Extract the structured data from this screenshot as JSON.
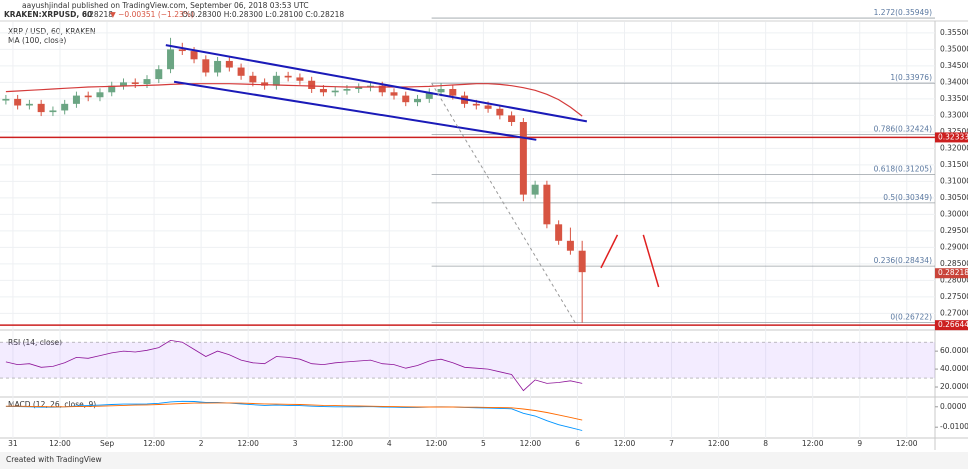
{
  "chart_data": {
    "type": "candlestick",
    "title": "aayushjindal published on TradingView.com, September 06, 2018 03:53 UTC",
    "subtitle": "KRAKEN:XRPUSD, 60",
    "quote": {
      "last": "0.28218",
      "change": "▼ −0.00351 (−1.23%)",
      "ohlc": "O:0.28300 H:0.28300 L:0.28100 C:0.28218"
    },
    "symbol": "XRP / USD, 60, KRAKEN",
    "up_color": "#6ba583",
    "down_color": "#d75442",
    "open": [
      0.3345,
      0.335,
      0.333,
      0.3335,
      0.331,
      0.3315,
      0.3335,
      0.336,
      0.3355,
      0.337,
      0.339,
      0.34,
      0.3395,
      0.341,
      0.344,
      0.35,
      0.3495,
      0.347,
      0.343,
      0.3465,
      0.3445,
      0.342,
      0.34,
      0.339,
      0.342,
      0.3415,
      0.3405,
      0.338,
      0.337,
      0.3375,
      0.338,
      0.3385,
      0.339,
      0.337,
      0.336,
      0.334,
      0.335,
      0.337,
      0.338,
      0.336,
      0.3335,
      0.333,
      0.332,
      0.33,
      0.328,
      0.306,
      0.309,
      0.297,
      0.292,
      0.289
    ],
    "high": [
      0.3362,
      0.3362,
      0.3347,
      0.3347,
      0.3327,
      0.3347,
      0.3372,
      0.3372,
      0.3382,
      0.3402,
      0.3412,
      0.3412,
      0.3422,
      0.3452,
      0.3535,
      0.352,
      0.3507,
      0.3482,
      0.3477,
      0.3477,
      0.3457,
      0.3432,
      0.3412,
      0.3432,
      0.3432,
      0.3427,
      0.3417,
      0.3392,
      0.3387,
      0.3392,
      0.3397,
      0.3402,
      0.3402,
      0.3382,
      0.3372,
      0.3362,
      0.3382,
      0.3398,
      0.3392,
      0.3372,
      0.3347,
      0.3342,
      0.3332,
      0.3312,
      0.3292,
      0.3102,
      0.3102,
      0.2982,
      0.296,
      0.292
    ],
    "low": [
      0.3333,
      0.3318,
      0.3318,
      0.3298,
      0.3298,
      0.3303,
      0.3323,
      0.3343,
      0.3343,
      0.3358,
      0.3378,
      0.3383,
      0.3383,
      0.3398,
      0.3428,
      0.3483,
      0.3458,
      0.3418,
      0.3418,
      0.3433,
      0.3408,
      0.3388,
      0.3378,
      0.3378,
      0.3403,
      0.3393,
      0.3368,
      0.3358,
      0.3358,
      0.3363,
      0.3368,
      0.3373,
      0.3358,
      0.3348,
      0.3328,
      0.3328,
      0.3338,
      0.3358,
      0.3348,
      0.3323,
      0.3318,
      0.3308,
      0.3288,
      0.3268,
      0.304,
      0.3048,
      0.2958,
      0.2908,
      0.2878,
      0.26722
    ],
    "close": [
      0.335,
      0.333,
      0.3335,
      0.331,
      0.3315,
      0.3335,
      0.336,
      0.3355,
      0.337,
      0.339,
      0.34,
      0.3395,
      0.341,
      0.344,
      0.35,
      0.3495,
      0.347,
      0.343,
      0.3465,
      0.3445,
      0.342,
      0.34,
      0.339,
      0.342,
      0.3415,
      0.3405,
      0.338,
      0.337,
      0.3375,
      0.338,
      0.3385,
      0.339,
      0.337,
      0.336,
      0.334,
      0.335,
      0.337,
      0.338,
      0.336,
      0.3335,
      0.333,
      0.332,
      0.33,
      0.328,
      0.306,
      0.309,
      0.297,
      0.292,
      0.289,
      0.2825
    ],
    "xlim": [
      -0.5,
      79
    ],
    "xticks": [
      {
        "value": 0.6,
        "label": "31"
      },
      {
        "value": 4.6,
        "label": "12:00"
      },
      {
        "value": 8.6,
        "label": "Sep"
      },
      {
        "value": 12.6,
        "label": "12:00"
      },
      {
        "value": 16.6,
        "label": "2"
      },
      {
        "value": 20.6,
        "label": "12:00"
      },
      {
        "value": 24.6,
        "label": "3"
      },
      {
        "value": 28.6,
        "label": "12:00"
      },
      {
        "value": 32.6,
        "label": "4"
      },
      {
        "value": 36.6,
        "label": "12:00"
      },
      {
        "value": 40.6,
        "label": "5"
      },
      {
        "value": 44.6,
        "label": "12:00"
      },
      {
        "value": 48.6,
        "label": "6"
      },
      {
        "value": 52.6,
        "label": "12:00"
      },
      {
        "value": 56.6,
        "label": "7"
      },
      {
        "value": 60.6,
        "label": "12:00"
      },
      {
        "value": 64.6,
        "label": "8"
      },
      {
        "value": 68.6,
        "label": "12:00"
      },
      {
        "value": 72.6,
        "label": "9"
      },
      {
        "value": 76.6,
        "label": "12:00"
      }
    ],
    "ylim": [
      0.2674,
      0.3583
    ],
    "yticks": [
      {
        "value": 0.355,
        "label": "0.35500"
      },
      {
        "value": 0.35,
        "label": "0.35000"
      },
      {
        "value": 0.345,
        "label": "0.34500"
      },
      {
        "value": 0.34,
        "label": "0.34000"
      },
      {
        "value": 0.335,
        "label": "0.33500"
      },
      {
        "value": 0.33,
        "label": "0.33000"
      },
      {
        "value": 0.325,
        "label": "0.32500"
      },
      {
        "value": 0.32,
        "label": "0.32000"
      },
      {
        "value": 0.315,
        "label": "0.31500"
      },
      {
        "value": 0.31,
        "label": "0.31000"
      },
      {
        "value": 0.305,
        "label": "0.30500"
      },
      {
        "value": 0.3,
        "label": "0.30000"
      },
      {
        "value": 0.295,
        "label": "0.29500"
      },
      {
        "value": 0.29,
        "label": "0.29000"
      },
      {
        "value": 0.285,
        "label": "0.28500"
      },
      {
        "value": 0.28,
        "label": "0.28000"
      },
      {
        "value": 0.275,
        "label": "0.27500"
      },
      {
        "value": 0.27,
        "label": "0.27000"
      }
    ],
    "grid": true,
    "ma": {
      "name": "MA (100, close)",
      "color": "#d43a3a",
      "values": [
        0.3372,
        0.3374,
        0.3376,
        0.3378,
        0.338,
        0.3382,
        0.3384,
        0.3386,
        0.3387,
        0.3388,
        0.3389,
        0.339,
        0.3391,
        0.3392,
        0.3394,
        0.3395,
        0.3396,
        0.3396,
        0.3396,
        0.3396,
        0.3395,
        0.3394,
        0.3393,
        0.3392,
        0.3391,
        0.339,
        0.3389,
        0.3388,
        0.3387,
        0.3386,
        0.3386,
        0.3386,
        0.3386,
        0.3386,
        0.3386,
        0.3387,
        0.3388,
        0.339,
        0.3392,
        0.3394,
        0.3396,
        0.3396,
        0.3394,
        0.339,
        0.3384,
        0.3376,
        0.3364,
        0.3348,
        0.3325,
        0.3298
      ]
    },
    "trendlines": [
      {
        "x": [
          13.6,
          49.4
        ],
        "y": [
          0.3513,
          0.3282
        ],
        "color": "#1a1ab8",
        "width": 2,
        "dashed": false
      },
      {
        "x": [
          14.3,
          45.1
        ],
        "y": [
          0.3402,
          0.3226
        ],
        "color": "#1a1ab8",
        "width": 2,
        "dashed": false
      },
      {
        "x": [
          36.2,
          48.4
        ],
        "y": [
          0.33976,
          0.26722
        ],
        "color": "#999999",
        "width": 1,
        "dashed": true
      },
      {
        "x": [
          50.6,
          52.0
        ],
        "y": [
          0.2838,
          0.2938
        ],
        "color": "#e02020",
        "width": 1.5,
        "dashed": false
      },
      {
        "x": [
          54.2,
          55.5
        ],
        "y": [
          0.2938,
          0.278
        ],
        "color": "#e02020",
        "width": 1.5,
        "dashed": false
      }
    ],
    "fib": {
      "color": "#9aa0a6",
      "label_color": "#5a78a0",
      "start": 36.2,
      "levels": [
        {
          "value": 0.35949,
          "label": "1.272(0.35949)"
        },
        {
          "value": 0.33976,
          "label": "1(0.33976)"
        },
        {
          "value": 0.32424,
          "label": "0.786(0.32424)"
        },
        {
          "value": 0.31205,
          "label": "0.618(0.31205)"
        },
        {
          "value": 0.30349,
          "label": "0.5(0.30349)"
        },
        {
          "value": 0.28434,
          "label": "0.236(0.28434)"
        },
        {
          "value": 0.26722,
          "label": "0(0.26722)"
        }
      ]
    },
    "price_lines": [
      {
        "value": 0.32333,
        "label": "0.32333",
        "color": "#cc1f1f"
      },
      {
        "value": 0.26644,
        "label": "0.26644",
        "color": "#cc1f1f"
      }
    ],
    "last_price": {
      "value": 0.28218,
      "label": "0.28218",
      "color": "#c9443a"
    },
    "rsi": {
      "name": "RSI (14, close)",
      "color": "#8e1599",
      "band": [
        30,
        70
      ],
      "band_color": "#9966ff",
      "ylim": [
        10,
        78
      ],
      "yticks": [
        {
          "value": 60,
          "label": "60.0000"
        },
        {
          "value": 40,
          "label": "40.0000"
        },
        {
          "value": 20,
          "label": "20.0000"
        }
      ],
      "values": [
        48,
        45,
        46,
        42,
        43,
        47,
        53,
        52,
        55,
        58,
        60,
        59,
        61,
        64,
        72,
        70,
        62,
        54,
        60,
        56,
        50,
        47,
        46,
        54,
        53,
        51,
        46,
        45,
        47,
        48,
        49,
        50,
        46,
        45,
        41,
        44,
        49,
        51,
        47,
        42,
        41,
        40,
        37,
        34,
        16,
        28,
        24,
        25,
        27,
        24
      ]
    },
    "macd": {
      "name": "MACD (12, 26, close, 9)",
      "ylim": [
        -0.0148,
        0.0043
      ],
      "yticks": [
        {
          "value": 0,
          "label": "0.0000"
        },
        {
          "value": -0.01,
          "label": "-0.0100"
        }
      ],
      "series": [
        {
          "color": "#0094ff",
          "values": [
            0.0002,
            0.0001,
            0.0,
            -0.0002,
            -0.0002,
            0.0,
            0.0004,
            0.0006,
            0.0008,
            0.0011,
            0.0013,
            0.0013,
            0.0014,
            0.0017,
            0.0024,
            0.0027,
            0.0026,
            0.0021,
            0.0021,
            0.0018,
            0.0014,
            0.001,
            0.0007,
            0.0008,
            0.0007,
            0.0006,
            0.0003,
            0.0001,
            0.0,
            0.0,
            0.0,
            0.0001,
            -0.0001,
            -0.0002,
            -0.0004,
            -0.0003,
            -0.0001,
            0.0,
            -0.0001,
            -0.0003,
            -0.0005,
            -0.0006,
            -0.0008,
            -0.001,
            -0.0032,
            -0.0045,
            -0.0068,
            -0.0088,
            -0.0102,
            -0.0116
          ]
        },
        {
          "color": "#ff6a00",
          "values": [
            0.0003,
            0.0003,
            0.0002,
            0.0001,
            0.0,
            0.0,
            0.0001,
            0.0002,
            0.0003,
            0.0005,
            0.0007,
            0.0008,
            0.0009,
            0.0011,
            0.0013,
            0.0016,
            0.0018,
            0.0018,
            0.0019,
            0.0019,
            0.0018,
            0.0016,
            0.0014,
            0.0013,
            0.0012,
            0.0011,
            0.0009,
            0.0007,
            0.0006,
            0.0005,
            0.0004,
            0.0003,
            0.0002,
            0.0001,
            0.0,
            -0.0001,
            -0.0001,
            -0.0001,
            -0.0001,
            -0.0002,
            -0.0002,
            -0.0003,
            -0.0004,
            -0.0005,
            -0.0011,
            -0.0018,
            -0.0028,
            -0.004,
            -0.0052,
            -0.0065
          ]
        }
      ]
    },
    "footer": "Created with TradingView"
  }
}
